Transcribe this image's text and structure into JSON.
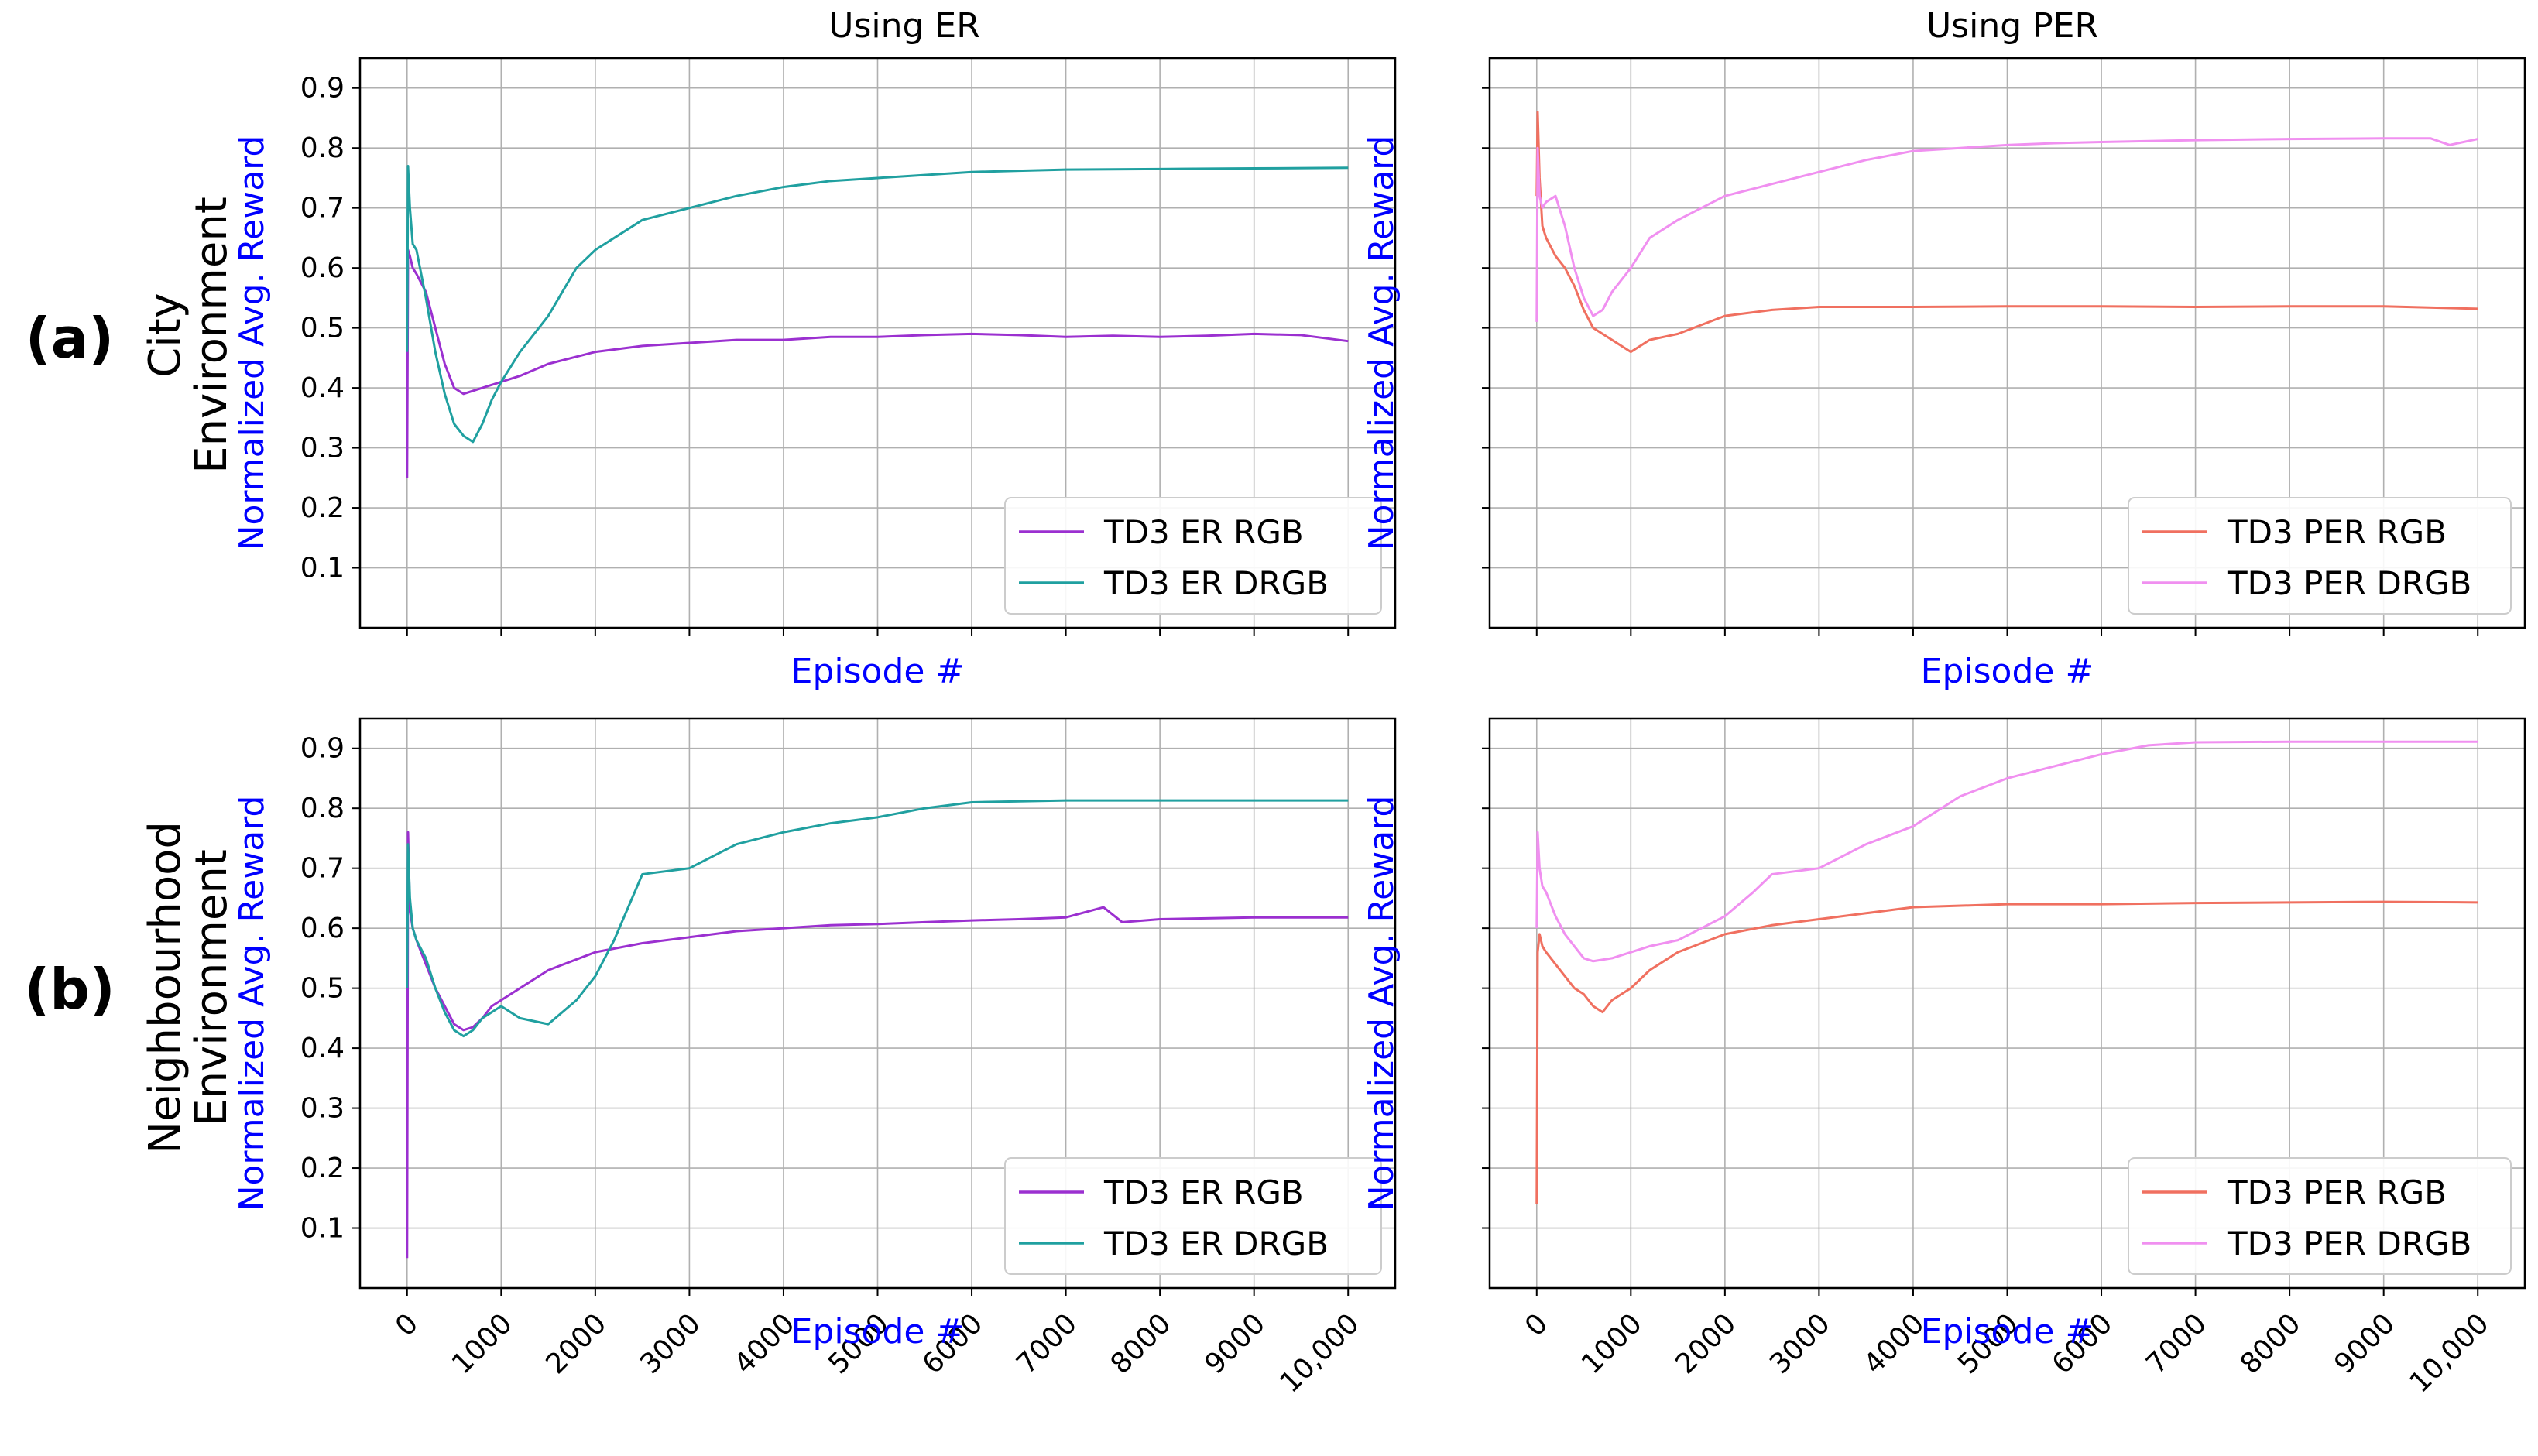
{
  "figure": {
    "col_titles": [
      "Using ER",
      "Using PER"
    ],
    "row_titles": [
      [
        "City",
        "Environment"
      ],
      [
        "Neighbourhood",
        "Environment"
      ]
    ],
    "panel_labels": [
      "(a)",
      "(b)"
    ]
  },
  "chart_data": [
    {
      "type": "line",
      "title": "Using ER",
      "row": "City Environment",
      "xlabel": "Episode #",
      "ylabel": "Normalized Avg. Reward",
      "xlim": [
        -500,
        10500
      ],
      "ylim": [
        0.0,
        0.95
      ],
      "x_ticks": [
        0,
        1000,
        2000,
        3000,
        4000,
        5000,
        6000,
        7000,
        8000,
        9000,
        10000
      ],
      "x_tick_labels": [],
      "y_ticks": [
        0.1,
        0.2,
        0.3,
        0.4,
        0.5,
        0.6,
        0.7,
        0.8,
        0.9
      ],
      "y_tick_labels": [
        "0.1",
        "0.2",
        "0.3",
        "0.4",
        "0.5",
        "0.6",
        "0.7",
        "0.8",
        "0.9"
      ],
      "grid": true,
      "legend_position": "lower-right",
      "series": [
        {
          "name": "TD3 ER RGB",
          "color": "#9b30d0",
          "x": [
            0,
            10,
            30,
            60,
            100,
            200,
            300,
            400,
            500,
            600,
            700,
            800,
            1000,
            1200,
            1500,
            2000,
            2500,
            3000,
            3500,
            4000,
            4500,
            5000,
            5500,
            6000,
            6500,
            7000,
            7500,
            8000,
            8500,
            9000,
            9500,
            10000
          ],
          "values": [
            0.25,
            0.63,
            0.62,
            0.6,
            0.59,
            0.56,
            0.5,
            0.44,
            0.4,
            0.39,
            0.395,
            0.4,
            0.41,
            0.42,
            0.44,
            0.46,
            0.47,
            0.475,
            0.48,
            0.48,
            0.485,
            0.485,
            0.488,
            0.49,
            0.488,
            0.485,
            0.487,
            0.485,
            0.487,
            0.49,
            0.488,
            0.478
          ]
        },
        {
          "name": "TD3 ER DRGB",
          "color": "#20a0a0",
          "x": [
            0,
            10,
            30,
            60,
            100,
            200,
            300,
            400,
            500,
            600,
            700,
            800,
            900,
            1000,
            1200,
            1500,
            1800,
            2000,
            2500,
            3000,
            3500,
            4000,
            4500,
            5000,
            5500,
            6000,
            6500,
            7000,
            8000,
            9000,
            10000
          ],
          "values": [
            0.46,
            0.77,
            0.7,
            0.64,
            0.63,
            0.55,
            0.46,
            0.39,
            0.34,
            0.32,
            0.31,
            0.34,
            0.38,
            0.41,
            0.46,
            0.52,
            0.6,
            0.63,
            0.68,
            0.7,
            0.72,
            0.735,
            0.745,
            0.75,
            0.755,
            0.76,
            0.762,
            0.764,
            0.765,
            0.766,
            0.767
          ]
        }
      ]
    },
    {
      "type": "line",
      "title": "Using PER",
      "row": "City Environment",
      "xlabel": "Episode #",
      "ylabel": "Normalized Avg. Reward",
      "xlim": [
        -500,
        10500
      ],
      "ylim": [
        0.0,
        0.95
      ],
      "x_ticks": [
        0,
        1000,
        2000,
        3000,
        4000,
        5000,
        6000,
        7000,
        8000,
        9000,
        10000
      ],
      "x_tick_labels": [],
      "y_ticks": [
        0.1,
        0.2,
        0.3,
        0.4,
        0.5,
        0.6,
        0.7,
        0.8,
        0.9
      ],
      "y_tick_labels": [],
      "grid": true,
      "legend_position": "lower-right",
      "series": [
        {
          "name": "TD3 PER RGB",
          "color": "#f07060",
          "x": [
            0,
            10,
            30,
            60,
            100,
            200,
            300,
            400,
            500,
            600,
            700,
            800,
            900,
            1000,
            1200,
            1500,
            2000,
            2500,
            3000,
            4000,
            5000,
            6000,
            7000,
            8000,
            9000,
            10000
          ],
          "values": [
            0.72,
            0.86,
            0.75,
            0.67,
            0.65,
            0.62,
            0.6,
            0.57,
            0.53,
            0.5,
            0.49,
            0.48,
            0.47,
            0.46,
            0.48,
            0.49,
            0.52,
            0.53,
            0.535,
            0.535,
            0.536,
            0.536,
            0.535,
            0.536,
            0.536,
            0.532
          ]
        },
        {
          "name": "TD3 PER DRGB",
          "color": "#f090f0",
          "x": [
            0,
            10,
            30,
            60,
            100,
            200,
            300,
            400,
            500,
            600,
            700,
            800,
            1000,
            1200,
            1500,
            2000,
            2500,
            3000,
            3500,
            4000,
            4500,
            5000,
            5500,
            6000,
            7000,
            8000,
            9000,
            9500,
            9700,
            10000
          ],
          "values": [
            0.51,
            0.8,
            0.72,
            0.7,
            0.71,
            0.72,
            0.67,
            0.6,
            0.55,
            0.52,
            0.53,
            0.56,
            0.6,
            0.65,
            0.68,
            0.72,
            0.74,
            0.76,
            0.78,
            0.795,
            0.8,
            0.805,
            0.808,
            0.81,
            0.813,
            0.815,
            0.816,
            0.816,
            0.805,
            0.815
          ]
        }
      ]
    },
    {
      "type": "line",
      "title": "",
      "row": "Neighbourhood Environment",
      "xlabel": "Episode #",
      "ylabel": "Normalized Avg. Reward",
      "xlim": [
        -500,
        10500
      ],
      "ylim": [
        0.0,
        0.95
      ],
      "x_ticks": [
        0,
        1000,
        2000,
        3000,
        4000,
        5000,
        6000,
        7000,
        8000,
        9000,
        10000
      ],
      "x_tick_labels": [
        "0",
        "1000",
        "2000",
        "3000",
        "4000",
        "5000",
        "6000",
        "7000",
        "8000",
        "9000",
        "10,000"
      ],
      "y_ticks": [
        0.1,
        0.2,
        0.3,
        0.4,
        0.5,
        0.6,
        0.7,
        0.8,
        0.9
      ],
      "y_tick_labels": [
        "0.1",
        "0.2",
        "0.3",
        "0.4",
        "0.5",
        "0.6",
        "0.7",
        "0.8",
        "0.9"
      ],
      "grid": true,
      "legend_position": "lower-right",
      "series": [
        {
          "name": "TD3 ER RGB",
          "color": "#9b30d0",
          "x": [
            0,
            10,
            30,
            60,
            100,
            200,
            300,
            400,
            500,
            600,
            700,
            800,
            900,
            1000,
            1200,
            1500,
            2000,
            2500,
            3000,
            3500,
            4000,
            4500,
            5000,
            5500,
            6000,
            6500,
            7000,
            7400,
            7600,
            8000,
            9000,
            10000
          ],
          "values": [
            0.05,
            0.76,
            0.63,
            0.6,
            0.58,
            0.54,
            0.5,
            0.47,
            0.44,
            0.43,
            0.435,
            0.45,
            0.47,
            0.48,
            0.5,
            0.53,
            0.56,
            0.575,
            0.585,
            0.595,
            0.6,
            0.605,
            0.607,
            0.61,
            0.613,
            0.615,
            0.618,
            0.635,
            0.61,
            0.615,
            0.618,
            0.618
          ]
        },
        {
          "name": "TD3 ER DRGB",
          "color": "#20a0a0",
          "x": [
            0,
            10,
            30,
            60,
            100,
            200,
            300,
            400,
            500,
            600,
            700,
            800,
            1000,
            1200,
            1500,
            1800,
            2000,
            2200,
            2500,
            3000,
            3500,
            4000,
            4500,
            5000,
            5500,
            6000,
            7000,
            8000,
            9000,
            10000
          ],
          "values": [
            0.5,
            0.74,
            0.65,
            0.6,
            0.58,
            0.55,
            0.5,
            0.46,
            0.43,
            0.42,
            0.43,
            0.45,
            0.47,
            0.45,
            0.44,
            0.48,
            0.52,
            0.58,
            0.69,
            0.7,
            0.74,
            0.76,
            0.775,
            0.785,
            0.8,
            0.81,
            0.813,
            0.813,
            0.813,
            0.813
          ]
        }
      ]
    },
    {
      "type": "line",
      "title": "",
      "row": "Neighbourhood Environment",
      "xlabel": "Episode #",
      "ylabel": "Normalized Avg. Reward",
      "xlim": [
        -500,
        10500
      ],
      "ylim": [
        0.0,
        0.95
      ],
      "x_ticks": [
        0,
        1000,
        2000,
        3000,
        4000,
        5000,
        6000,
        7000,
        8000,
        9000,
        10000
      ],
      "x_tick_labels": [
        "0",
        "1000",
        "2000",
        "3000",
        "4000",
        "5000",
        "6000",
        "7000",
        "8000",
        "9000",
        "10,000"
      ],
      "y_ticks": [
        0.1,
        0.2,
        0.3,
        0.4,
        0.5,
        0.6,
        0.7,
        0.8,
        0.9
      ],
      "y_tick_labels": [],
      "grid": true,
      "legend_position": "lower-right",
      "series": [
        {
          "name": "TD3 PER RGB",
          "color": "#f07060",
          "x": [
            0,
            10,
            30,
            60,
            100,
            200,
            300,
            400,
            500,
            600,
            700,
            800,
            1000,
            1200,
            1500,
            2000,
            2500,
            3000,
            3500,
            4000,
            5000,
            6000,
            7000,
            8000,
            9000,
            10000
          ],
          "values": [
            0.14,
            0.56,
            0.59,
            0.57,
            0.56,
            0.54,
            0.52,
            0.5,
            0.49,
            0.47,
            0.46,
            0.48,
            0.5,
            0.53,
            0.56,
            0.59,
            0.605,
            0.615,
            0.625,
            0.635,
            0.64,
            0.64,
            0.642,
            0.643,
            0.644,
            0.643
          ]
        },
        {
          "name": "TD3 PER DRGB",
          "color": "#f090f0",
          "x": [
            0,
            10,
            30,
            60,
            100,
            200,
            300,
            400,
            500,
            600,
            800,
            1000,
            1200,
            1500,
            2000,
            2300,
            2500,
            3000,
            3500,
            4000,
            4500,
            5000,
            5500,
            6000,
            6500,
            7000,
            8000,
            9000,
            10000
          ],
          "values": [
            0.6,
            0.76,
            0.7,
            0.67,
            0.66,
            0.62,
            0.59,
            0.57,
            0.55,
            0.545,
            0.55,
            0.56,
            0.57,
            0.58,
            0.62,
            0.66,
            0.69,
            0.7,
            0.74,
            0.77,
            0.82,
            0.85,
            0.87,
            0.89,
            0.905,
            0.91,
            0.911,
            0.911,
            0.911
          ]
        }
      ]
    }
  ]
}
